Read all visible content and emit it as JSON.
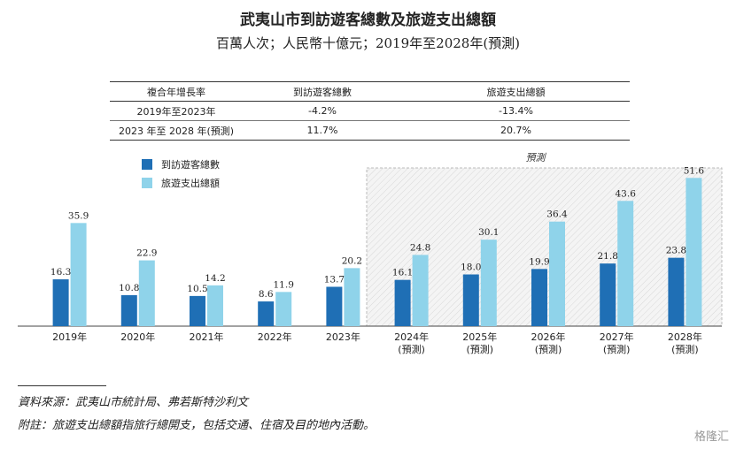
{
  "title": "武夷山市到訪遊客總數及旅遊支出總額",
  "subtitle": "百萬人次；人民幣十億元；2019年至2028年(預測)",
  "cagr_table": {
    "headers": [
      "複合年增長率",
      "到訪遊客總數",
      "旅遊支出總額"
    ],
    "rows": [
      [
        "2019年至2023年",
        "-4.2%",
        "-13.4%"
      ],
      [
        "2023 年至 2028 年(預測)",
        "11.7%",
        "20.7%"
      ]
    ]
  },
  "forecast_label": "預測",
  "chart_data": {
    "type": "bar",
    "categories": [
      "2019年",
      "2020年",
      "2021年",
      "2022年",
      "2023年",
      "2024年\n(預測)",
      "2025年\n(預測)",
      "2026年\n(預測)",
      "2027年\n(預測)",
      "2028年\n(預測)"
    ],
    "series": [
      {
        "name": "到訪遊客總數",
        "color": "#1f6fb5",
        "values": [
          16.3,
          10.8,
          10.5,
          8.6,
          13.7,
          16.1,
          18.0,
          19.9,
          21.8,
          23.8
        ]
      },
      {
        "name": "旅遊支出總額",
        "color": "#8fd3ea",
        "values": [
          35.9,
          22.9,
          14.2,
          11.9,
          20.2,
          24.8,
          30.1,
          36.4,
          43.6,
          51.6
        ]
      }
    ],
    "forecast_start_index": 5,
    "ylim": [
      0,
      56
    ]
  },
  "footnotes": {
    "source": "資料來源：武夷山市統計局、弗若斯特沙利文",
    "note": "附註：旅遊支出總額指旅行總開支，包括交通、住宿及目的地內活動。"
  },
  "watermark": "格隆汇"
}
